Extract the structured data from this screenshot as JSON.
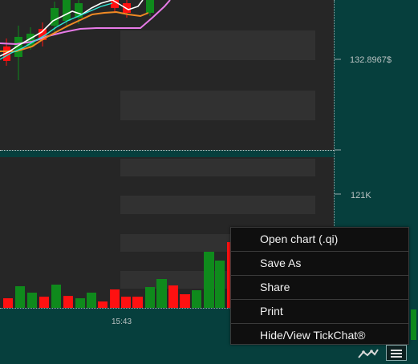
{
  "axis": {
    "price_label": "132.8967$",
    "volume_label": "121K",
    "time_label": "15:43"
  },
  "context_menu": {
    "items": [
      {
        "label": "Open chart (.qi)"
      },
      {
        "label": "Save As"
      },
      {
        "label": "Share"
      },
      {
        "label": "Print"
      },
      {
        "label": "Hide/View TickChat®"
      }
    ]
  },
  "toolbar": {
    "chart_style_icon": "line-chart-icon",
    "menu_icon": "hamburger-menu-icon"
  },
  "colors": {
    "up": "#0f8a1c",
    "down": "#ff1111",
    "pane_bg": "#262626",
    "frame_bg": "#063f3d",
    "orange_line": "#f08a24",
    "pink_line": "#e77ae7",
    "white_line": "#ffffff",
    "cyan_line": "#2ee6d6"
  }
}
